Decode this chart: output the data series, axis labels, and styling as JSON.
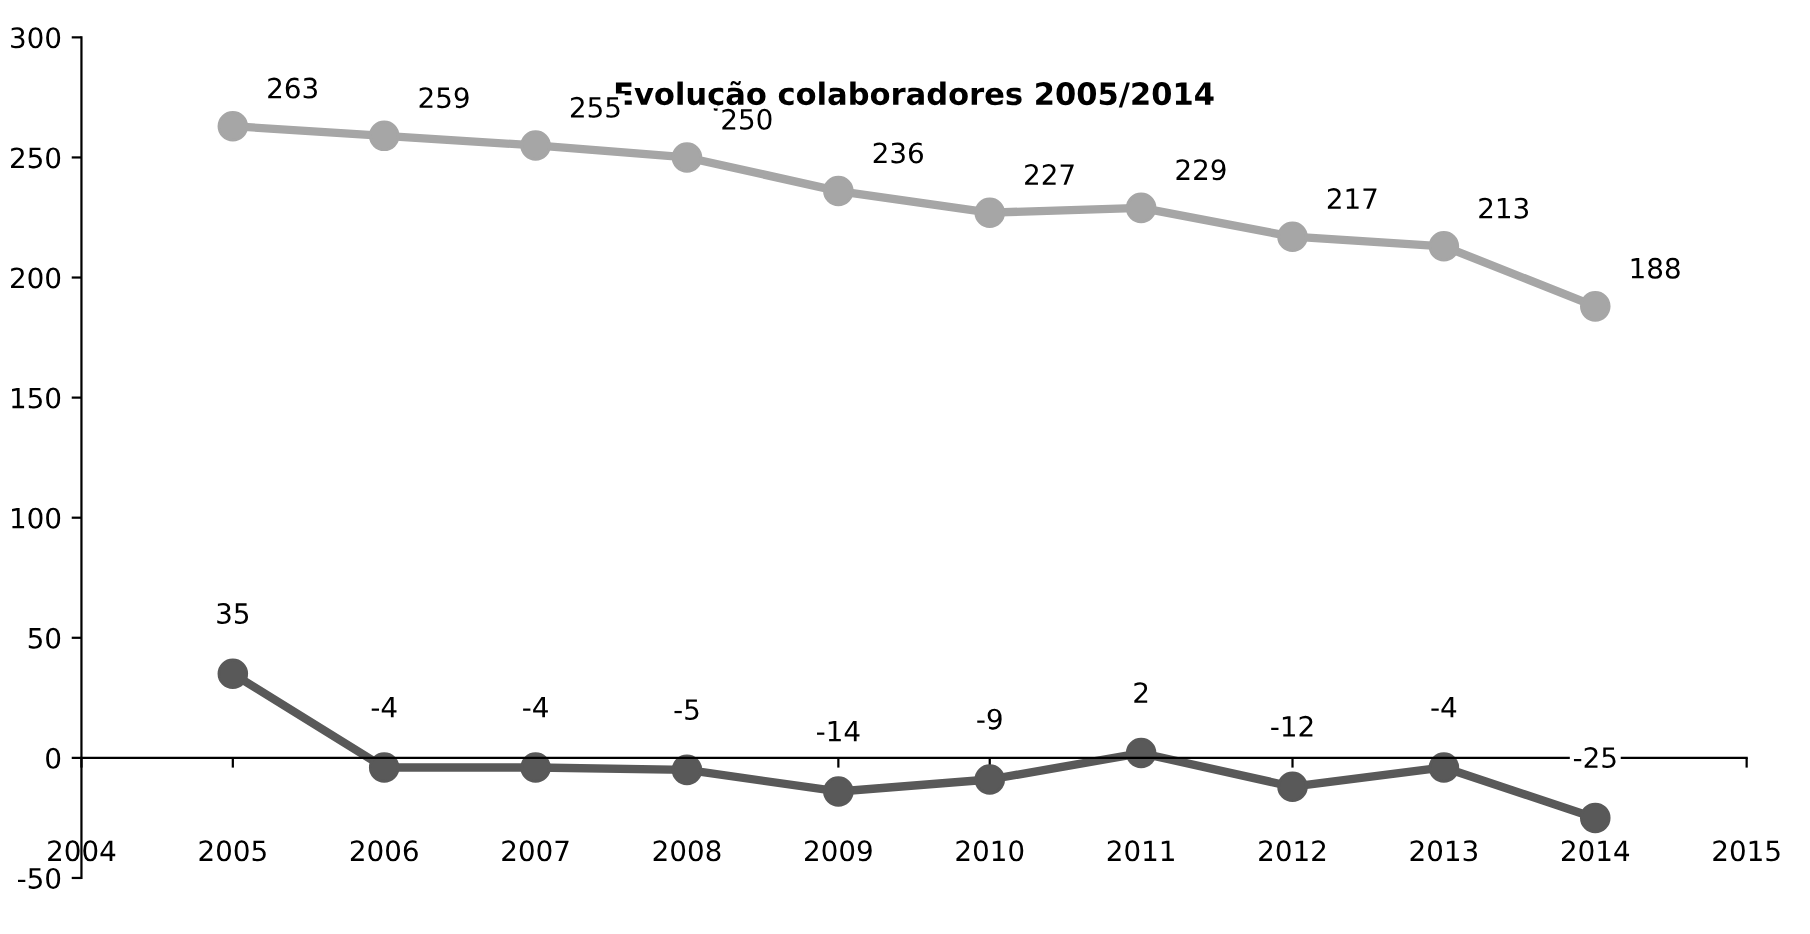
{
  "chart_data": {
    "type": "line",
    "title": "Evolução colaboradores 2005/2014",
    "x": [
      2005,
      2006,
      2007,
      2008,
      2009,
      2010,
      2011,
      2012,
      2013,
      2014
    ],
    "series": [
      {
        "color": "#a6a6a6",
        "values": [
          263,
          259,
          255,
          250,
          236,
          227,
          229,
          217,
          213,
          188
        ]
      },
      {
        "color": "#595959",
        "values": [
          35,
          -4,
          -4,
          -5,
          -14,
          -9,
          2,
          -12,
          -4,
          -25
        ]
      }
    ],
    "xlim": [
      2004,
      2015
    ],
    "xticks": [
      2004,
      2005,
      2006,
      2007,
      2008,
      2009,
      2010,
      2011,
      2012,
      2013,
      2014,
      2015
    ],
    "ylim": [
      -50,
      300
    ],
    "yticks": [
      -50,
      0,
      50,
      100,
      150,
      200,
      250,
      300
    ],
    "data_labels": true,
    "marker": "circle",
    "line_style": "solid"
  }
}
